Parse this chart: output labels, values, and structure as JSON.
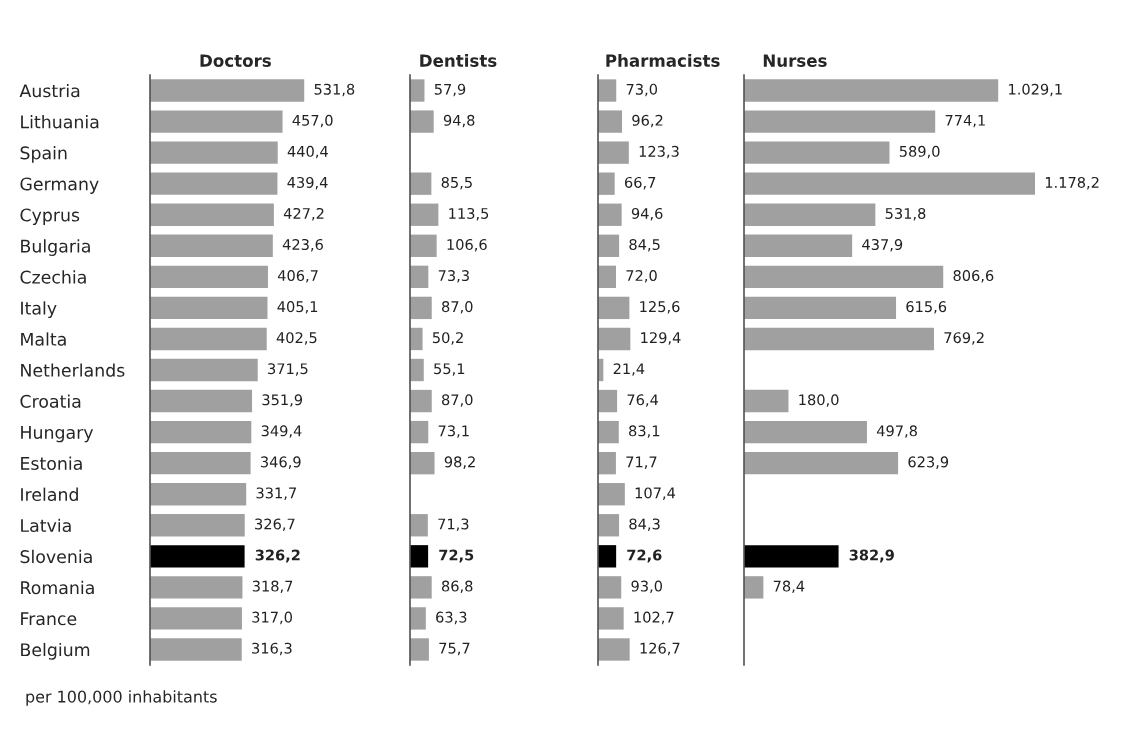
{
  "chart_data": [
    {
      "type": "bar",
      "orientation": "horizontal",
      "title": "Doctors",
      "categories": [
        "Austria",
        "Lithuania",
        "Spain",
        "Germany",
        "Cyprus",
        "Bulgaria",
        "Czechia",
        "Italy",
        "Malta",
        "Netherlands",
        "Croatia",
        "Hungary",
        "Estonia",
        "Ireland",
        "Latvia",
        "Slovenia",
        "Romania",
        "France",
        "Belgium"
      ],
      "values": [
        531.8,
        457.0,
        440.4,
        439.4,
        427.2,
        423.6,
        406.7,
        405.1,
        402.5,
        371.5,
        351.9,
        349.4,
        346.9,
        331.7,
        326.7,
        326.2,
        318.7,
        317.0,
        316.3
      ],
      "value_labels": [
        "531,8",
        "457,0",
        "440,4",
        "439,4",
        "427,2",
        "423,6",
        "406,7",
        "405,1",
        "402,5",
        "371,5",
        "351,9",
        "349,4",
        "346,9",
        "331,7",
        "326,7",
        "326,2",
        "318,7",
        "317,0",
        "316,3"
      ],
      "colors": [
        "#a0a0a0",
        "#a0a0a0",
        "#a0a0a0",
        "#a0a0a0",
        "#a0a0a0",
        "#a0a0a0",
        "#a0a0a0",
        "#a0a0a0",
        "#a0a0a0",
        "#a0a0a0",
        "#a0a0a0",
        "#a0a0a0",
        "#a0a0a0",
        "#a0a0a0",
        "#a0a0a0",
        "#000000",
        "#a0a0a0",
        "#a0a0a0",
        "#a0a0a0"
      ],
      "tick_labels": "y",
      "annotations": [
        "per 100,000 inhabitants"
      ]
    },
    {
      "type": "bar",
      "orientation": "horizontal",
      "title": "Dentists",
      "categories": [
        null,
        null,
        null,
        null,
        null,
        null,
        null,
        null,
        null,
        null,
        null,
        null,
        null,
        null,
        null,
        null,
        null,
        null,
        null
      ],
      "values": [
        57.9,
        94.8,
        null,
        85.5,
        113.5,
        106.6,
        73.3,
        87.0,
        50.2,
        55.1,
        87.0,
        73.1,
        98.2,
        null,
        71.3,
        72.5,
        86.8,
        63.3,
        75.7
      ],
      "value_labels": [
        "57,9",
        "94,8",
        null,
        "85,5",
        "113,5",
        "106,6",
        "73,3",
        "87,0",
        "50,2",
        "55,1",
        "87,0",
        "73,1",
        "98,2",
        null,
        "71,3",
        "72,5",
        "86,8",
        "63,3",
        "75,7"
      ],
      "colors": [
        "#a0a0a0",
        "#a0a0a0",
        "#a0a0a0",
        "#a0a0a0",
        "#a0a0a0",
        "#a0a0a0",
        "#a0a0a0",
        "#a0a0a0",
        "#a0a0a0",
        "#a0a0a0",
        "#a0a0a0",
        "#a0a0a0",
        "#a0a0a0",
        "#a0a0a0",
        "#a0a0a0",
        "#000000",
        "#a0a0a0",
        "#a0a0a0",
        "#a0a0a0"
      ],
      "tick_labels": false
    },
    {
      "type": "bar",
      "orientation": "horizontal",
      "title": "Pharmacists",
      "categories": [
        null,
        null,
        null,
        null,
        null,
        null,
        null,
        null,
        null,
        null,
        null,
        null,
        null,
        null,
        null,
        null,
        null,
        null,
        null
      ],
      "values": [
        73.0,
        96.2,
        123.3,
        66.7,
        94.6,
        84.5,
        72.0,
        125.6,
        129.4,
        21.4,
        76.4,
        83.1,
        71.7,
        107.4,
        84.3,
        72.6,
        93.0,
        102.7,
        126.7
      ],
      "value_labels": [
        "73,0",
        "96,2",
        "123,3",
        "66,7",
        "94,6",
        "84,5",
        "72,0",
        "125,6",
        "129,4",
        "21,4",
        "76,4",
        "83,1",
        "71,7",
        "107,4",
        "84,3",
        "72,6",
        "93,0",
        "102,7",
        "126,7"
      ],
      "colors": [
        "#a0a0a0",
        "#a0a0a0",
        "#a0a0a0",
        "#a0a0a0",
        "#a0a0a0",
        "#a0a0a0",
        "#a0a0a0",
        "#a0a0a0",
        "#a0a0a0",
        "#a0a0a0",
        "#a0a0a0",
        "#a0a0a0",
        "#a0a0a0",
        "#a0a0a0",
        "#a0a0a0",
        "#000000",
        "#a0a0a0",
        "#a0a0a0",
        "#a0a0a0"
      ],
      "tick_labels": false
    },
    {
      "type": "bar",
      "orientation": "horizontal",
      "title": "Nurses",
      "categories": [
        null,
        null,
        null,
        null,
        null,
        null,
        null,
        null,
        null,
        null,
        null,
        null,
        null,
        null,
        null,
        null,
        null,
        null,
        null
      ],
      "values": [
        1029.1,
        774.1,
        589.0,
        1178.2,
        531.8,
        437.9,
        806.6,
        615.6,
        769.2,
        null,
        180.0,
        497.8,
        623.9,
        null,
        null,
        382.9,
        78.4,
        null,
        null
      ],
      "value_labels": [
        "1.029,1",
        "774,1",
        "589,0",
        "1.178,2",
        "531,8",
        "437,9",
        "806,6",
        "615,6",
        "769,2",
        null,
        "180,0",
        "497,8",
        "623,9",
        null,
        null,
        "382,9",
        "78,4",
        null,
        null
      ],
      "colors": [
        "#a0a0a0",
        "#a0a0a0",
        "#a0a0a0",
        "#a0a0a0",
        "#a0a0a0",
        "#a0a0a0",
        "#a0a0a0",
        "#a0a0a0",
        "#a0a0a0",
        "#a0a0a0",
        "#a0a0a0",
        "#a0a0a0",
        "#a0a0a0",
        "#a0a0a0",
        "#a0a0a0",
        "#000000",
        "#a0a0a0",
        "#a0a0a0",
        "#a0a0a0"
      ],
      "tick_labels": false
    }
  ]
}
